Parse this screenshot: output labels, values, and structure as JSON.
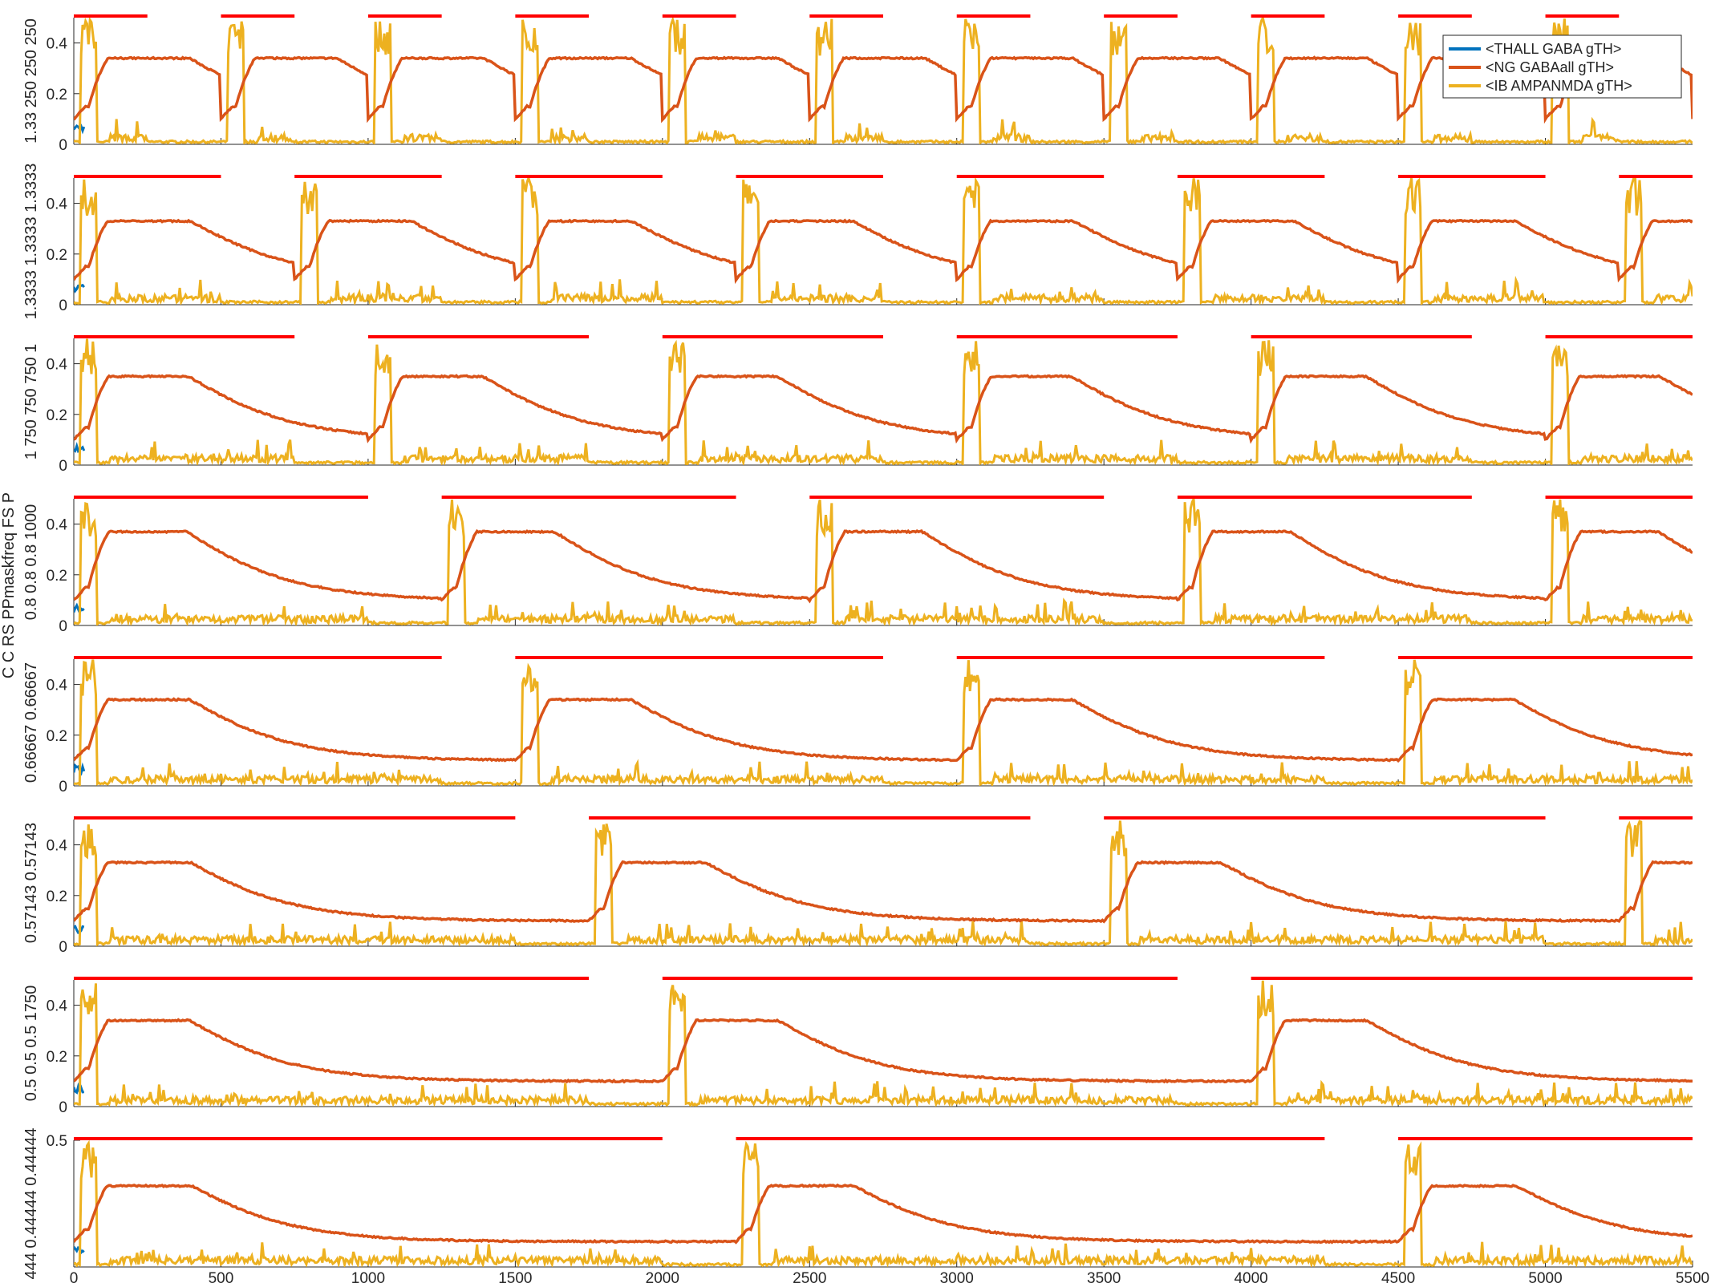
{
  "figure": {
    "ylabel_left": "C C RS PPmaskfreq FS P",
    "legend": [
      "<THALL GABA gTH>",
      "<NG GABAall gTH>",
      "<IB AMPANMDA gTH>"
    ],
    "colors": {
      "thall": "#0072BD",
      "ng": "#D95319",
      "ib": "#EDB120",
      "pulse": "#FF0000",
      "axis": "#262626"
    }
  },
  "chart_data": [
    {
      "type": "line",
      "panel_label": "1.33 250 250 250",
      "period": 500,
      "duty": 250,
      "xlim": [
        0,
        5500
      ],
      "ylim": [
        0,
        0.5
      ],
      "yticks": [
        0,
        0.2,
        0.4
      ],
      "ytick_labels": [
        "0",
        "0.2",
        "0.4"
      ],
      "xticks": [
        500,
        1000,
        1500,
        2000,
        2500,
        3000,
        3500,
        4000,
        4500,
        5000
      ],
      "xtick_labels": [],
      "ng_peak": 0.32,
      "ib_peak": 0.5,
      "series": [
        "<THALL GABA gTH>",
        "<NG GABAall gTH>",
        "<IB AMPANMDA gTH>"
      ]
    },
    {
      "type": "line",
      "panel_label": "1.3333 1.3333 1.3333",
      "period": 750,
      "duty": 500,
      "xlim": [
        0,
        5500
      ],
      "ylim": [
        0,
        0.5
      ],
      "yticks": [
        0,
        0.2,
        0.4
      ],
      "ytick_labels": [
        "0",
        "0.2",
        "0.4"
      ],
      "xticks": [
        500,
        1000,
        1500,
        2000,
        2500,
        3000,
        3500,
        4000,
        4500,
        5000
      ],
      "xtick_labels": [],
      "ng_peak": 0.31,
      "ib_peak": 0.5,
      "series": [
        "<THALL GABA gTH>",
        "<NG GABAall gTH>",
        "<IB AMPANMDA gTH>"
      ]
    },
    {
      "type": "line",
      "panel_label": "1 750 750 750 1",
      "period": 1000,
      "duty": 750,
      "xlim": [
        0,
        5500
      ],
      "ylim": [
        0,
        0.5
      ],
      "yticks": [
        0,
        0.2,
        0.4
      ],
      "ytick_labels": [
        "0",
        "0.2",
        "0.4"
      ],
      "xticks": [
        500,
        1000,
        1500,
        2000,
        2500,
        3000,
        3500,
        4000,
        4500,
        5000
      ],
      "xtick_labels": [],
      "ng_peak": 0.33,
      "ib_peak": 0.5,
      "series": [
        "<THALL GABA gTH>",
        "<NG GABAall gTH>",
        "<IB AMPANMDA gTH>"
      ]
    },
    {
      "type": "line",
      "panel_label": "0.8 0.8 0.8 1000",
      "period": 1250,
      "duty": 1000,
      "xlim": [
        0,
        5500
      ],
      "ylim": [
        0,
        0.5
      ],
      "yticks": [
        0,
        0.2,
        0.4
      ],
      "ytick_labels": [
        "0",
        "0.2",
        "0.4"
      ],
      "xticks": [
        500,
        1000,
        1500,
        2000,
        2500,
        3000,
        3500,
        4000,
        4500,
        5000
      ],
      "xtick_labels": [],
      "ng_peak": 0.35,
      "ib_peak": 0.5,
      "series": [
        "<THALL GABA gTH>",
        "<NG GABAall gTH>",
        "<IB AMPANMDA gTH>"
      ]
    },
    {
      "type": "line",
      "panel_label": "0.66667 0.66667",
      "period": 1500,
      "duty": 1250,
      "xlim": [
        0,
        5500
      ],
      "ylim": [
        0,
        0.5
      ],
      "yticks": [
        0,
        0.2,
        0.4
      ],
      "ytick_labels": [
        "0",
        "0.2",
        "0.4"
      ],
      "xticks": [
        500,
        1000,
        1500,
        2000,
        2500,
        3000,
        3500,
        4000,
        4500,
        5000
      ],
      "xtick_labels": [],
      "ng_peak": 0.32,
      "ib_peak": 0.5,
      "series": [
        "<THALL GABA gTH>",
        "<NG GABAall gTH>",
        "<IB AMPANMDA gTH>"
      ]
    },
    {
      "type": "line",
      "panel_label": "0.57143 0.57143",
      "period": 1750,
      "duty": 1500,
      "xlim": [
        0,
        5500
      ],
      "ylim": [
        0,
        0.5
      ],
      "yticks": [
        0,
        0.2,
        0.4
      ],
      "ytick_labels": [
        "0",
        "0.2",
        "0.4"
      ],
      "xticks": [
        500,
        1000,
        1500,
        2000,
        2500,
        3000,
        3500,
        4000,
        4500,
        5000
      ],
      "xtick_labels": [],
      "ng_peak": 0.31,
      "ib_peak": 0.5,
      "series": [
        "<THALL GABA gTH>",
        "<NG GABAall gTH>",
        "<IB AMPANMDA gTH>"
      ]
    },
    {
      "type": "line",
      "panel_label": "0.5 0.5 0.5 1750",
      "period": 2000,
      "duty": 1750,
      "xlim": [
        0,
        5500
      ],
      "ylim": [
        0,
        0.5
      ],
      "yticks": [
        0,
        0.2,
        0.4
      ],
      "ytick_labels": [
        "0",
        "0.2",
        "0.4"
      ],
      "xticks": [
        500,
        1000,
        1500,
        2000,
        2500,
        3000,
        3500,
        4000,
        4500,
        5000
      ],
      "xtick_labels": [],
      "ng_peak": 0.32,
      "ib_peak": 0.5,
      "series": [
        "<THALL GABA gTH>",
        "<NG GABAall gTH>",
        "<IB AMPANMDA gTH>"
      ]
    },
    {
      "type": "line",
      "panel_label": "444 0.44444 0.44444",
      "period": 2250,
      "duty": 2000,
      "xlim": [
        0,
        5500
      ],
      "ylim": [
        0,
        0.5
      ],
      "yticks": [
        0.5
      ],
      "ytick_labels": [
        "0.5"
      ],
      "xticks": [
        0,
        500,
        1000,
        1500,
        2000,
        2500,
        3000,
        3500,
        4000,
        4500,
        5000,
        5500
      ],
      "xtick_labels": [
        "0",
        "500",
        "1000",
        "1500",
        "2000",
        "2500",
        "3000",
        "3500",
        "4000",
        "4500",
        "5000",
        "5500"
      ],
      "ng_peak": 0.3,
      "ib_peak": 0.5,
      "series": [
        "<THALL GABA gTH>",
        "<NG GABAall gTH>",
        "<IB AMPANMDA gTH>"
      ]
    }
  ]
}
